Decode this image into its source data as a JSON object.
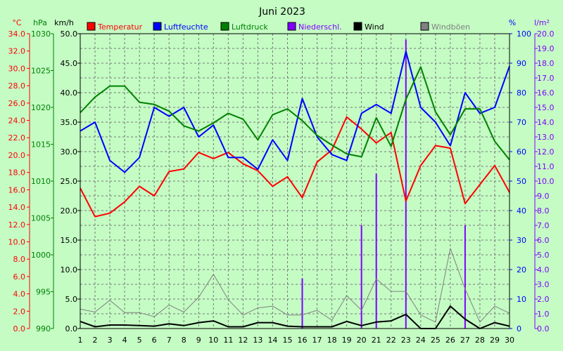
{
  "chart_data": {
    "type": "line",
    "title": "Juni 2023",
    "x": [
      1,
      2,
      3,
      4,
      5,
      6,
      7,
      8,
      9,
      10,
      11,
      12,
      13,
      14,
      15,
      16,
      17,
      18,
      19,
      20,
      21,
      22,
      23,
      24,
      25,
      26,
      27,
      28,
      29,
      30
    ],
    "axes": {
      "temp": {
        "label": "°C",
        "min": 0,
        "max": 34,
        "step": 2,
        "color": "#ff0000"
      },
      "pressure": {
        "label": "hPa",
        "min": 990,
        "max": 1030,
        "step": 5,
        "color": "#008000"
      },
      "wind": {
        "label": "km/h",
        "min": 0,
        "max": 50,
        "step": 5,
        "color": "#000000"
      },
      "humidity": {
        "label": "%",
        "min": 0,
        "max": 100,
        "step": 10,
        "color": "#0000ff"
      },
      "rain": {
        "label": "l/m²",
        "min": 0,
        "max": 20,
        "step": 1,
        "color": "#8000ff"
      }
    },
    "legend": [
      "Temperatur",
      "Luftfeuchte",
      "Luftdruck",
      "Niederschl.",
      "Wind",
      "Windböen"
    ],
    "series": [
      {
        "name": "Temperatur",
        "axis": "temp",
        "color": "#ff0000",
        "values": [
          16.2,
          12.9,
          13.3,
          14.6,
          16.4,
          15.3,
          18.1,
          18.4,
          20.3,
          19.6,
          20.3,
          19.0,
          18.2,
          16.4,
          17.5,
          15.1,
          19.2,
          20.6,
          24.4,
          23.0,
          21.4,
          22.6,
          14.7,
          18.8,
          21.1,
          20.8,
          14.4,
          16.6,
          18.8,
          15.7
        ]
      },
      {
        "name": "Luftfeuchte",
        "axis": "humidity",
        "color": "#0000ff",
        "values": [
          67,
          70,
          57,
          53,
          58,
          75,
          72,
          75,
          65,
          69,
          58,
          58,
          54,
          64,
          57,
          78,
          65,
          59,
          57,
          73,
          76,
          73,
          94,
          75,
          70,
          62,
          80,
          73,
          75,
          89
        ]
      },
      {
        "name": "Luftdruck",
        "axis": "pressure",
        "color": "#008000",
        "values": [
          1019.3,
          1021.4,
          1022.9,
          1022.9,
          1020.7,
          1020.4,
          1019.5,
          1017.5,
          1016.8,
          1017.9,
          1019.2,
          1018.4,
          1015.6,
          1019.0,
          1019.8,
          1018.2,
          1016.2,
          1014.9,
          1013.7,
          1013.3,
          1018.6,
          1014.7,
          1021.1,
          1025.5,
          1019.4,
          1016.3,
          1019.8,
          1019.8,
          1015.4,
          1012.9
        ]
      },
      {
        "name": "Niederschl.",
        "axis": "rain",
        "color": "#8000ff",
        "style": "bar",
        "values": [
          0,
          0,
          0,
          0,
          0,
          0,
          0,
          0,
          0,
          0,
          0,
          0,
          0,
          0,
          0,
          3.4,
          0,
          0,
          0,
          7.0,
          10.5,
          0,
          19.6,
          0,
          0,
          0,
          7.0,
          0,
          0,
          0
        ]
      },
      {
        "name": "Wind",
        "axis": "wind",
        "color": "#000000",
        "values": [
          1.2,
          0.3,
          0.6,
          0.6,
          0.5,
          0.4,
          0.8,
          0.5,
          1.0,
          1.3,
          0.3,
          0.3,
          1.0,
          1.0,
          0.4,
          0.3,
          0.3,
          0.3,
          1.2,
          0.5,
          1.1,
          1.3,
          2.4,
          0.0,
          0.0,
          3.8,
          1.6,
          0.0,
          1.0,
          0.4
        ]
      },
      {
        "name": "Windböen",
        "axis": "wind",
        "color": "#808080",
        "values": [
          3.3,
          2.8,
          4.8,
          2.7,
          2.7,
          2.0,
          4.0,
          2.8,
          5.3,
          9.2,
          4.9,
          2.3,
          3.5,
          3.8,
          2.3,
          2.3,
          3.1,
          1.4,
          5.6,
          3.1,
          8.4,
          6.3,
          6.3,
          2.3,
          1.1,
          13.6,
          6.7,
          1.1,
          3.8,
          2.6
        ]
      }
    ]
  }
}
